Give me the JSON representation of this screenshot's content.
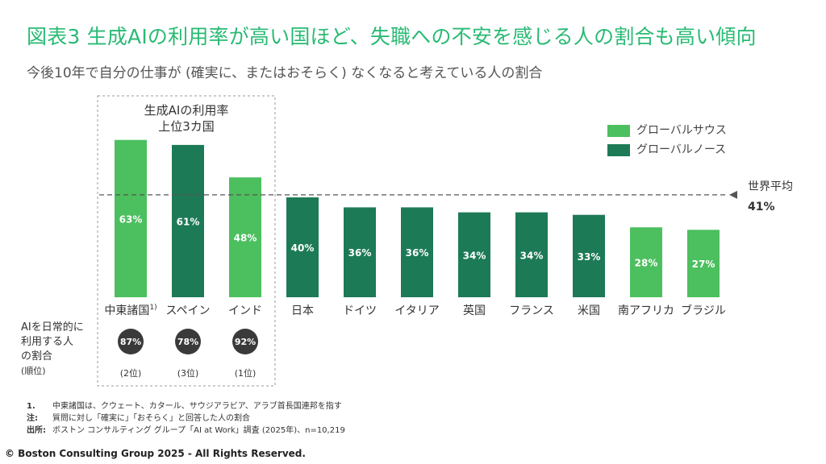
{
  "header": {
    "title": "図表3 生成AIの利用率が高い国ほど、失職への不安を感じる人の割合も高い傾向",
    "subtitle": "今後10年で自分の仕事が (確実に、またはおそらく) なくなると考えている人の割合"
  },
  "highlight_box": {
    "title_line1": "生成AIの利用率",
    "title_line2": "上位3カ国"
  },
  "legend": {
    "south": {
      "label": "グローバルサウス",
      "color": "#4cbf5e"
    },
    "north": {
      "label": "グローバルノース",
      "color": "#1d7a57"
    }
  },
  "average": {
    "label": "世界平均",
    "value_label": "41%",
    "value": 41
  },
  "usage_row": {
    "label_lines": [
      "AIを日常的に",
      "利用する人",
      "の割合"
    ],
    "rank_label": "(順位)",
    "items": [
      {
        "value_label": "87%",
        "rank": "(2位)"
      },
      {
        "value_label": "78%",
        "rank": "(3位)"
      },
      {
        "value_label": "92%",
        "rank": "(1位)"
      }
    ]
  },
  "chart_data": {
    "type": "bar",
    "categories": [
      "中東諸国",
      "スペイン",
      "インド",
      "日本",
      "ドイツ",
      "イタリア",
      "英国",
      "フランス",
      "米国",
      "南アフリカ",
      "ブラジル"
    ],
    "category_superscripts": [
      "1)",
      "",
      "",
      "",
      "",
      "",
      "",
      "",
      "",
      "",
      ""
    ],
    "values": [
      63,
      61,
      48,
      40,
      36,
      36,
      34,
      34,
      33,
      28,
      27
    ],
    "value_labels": [
      "63%",
      "61%",
      "48%",
      "40%",
      "36%",
      "36%",
      "34%",
      "34%",
      "33%",
      "28%",
      "27%"
    ],
    "group": [
      "south",
      "north",
      "south",
      "north",
      "north",
      "north",
      "north",
      "north",
      "north",
      "south",
      "south"
    ],
    "reference_line": 41
  },
  "notes": [
    {
      "key": "1.",
      "text": "中東諸国は、クウェート、カタール、サウジアラビア、アラブ首長国連邦を指す"
    },
    {
      "key": "注:",
      "text": "質問に対し「確実に」「おそらく」と回答した人の割合"
    },
    {
      "key": "出所:",
      "text": "ボストン コンサルティング グループ「AI at Work」調査 (2025年)、n=10,219"
    }
  ],
  "footer": {
    "copyright": "© Boston Consulting Group 2025 - All Rights Reserved."
  }
}
